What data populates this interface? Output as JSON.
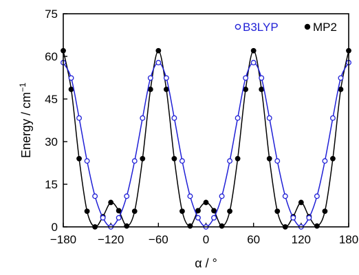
{
  "chart_data": {
    "type": "line",
    "xlabel": "α / °",
    "ylabel": "Energy / cm",
    "ylabel_superscript": "−1",
    "xlim": [
      -180,
      180
    ],
    "ylim": [
      0,
      75
    ],
    "xticks": [
      -180,
      -120,
      -60,
      0,
      60,
      120,
      180
    ],
    "yticks": [
      0,
      15,
      30,
      45,
      60,
      75
    ],
    "xtick_labels": [
      "−180",
      "−120",
      "−60",
      "0",
      "60",
      "120",
      "180"
    ],
    "ytick_labels": [
      "0",
      "15",
      "30",
      "45",
      "60",
      "75"
    ],
    "grid": false,
    "legend_placement": "top-right",
    "series": [
      {
        "name": "B3LYP",
        "color": "#1f1fd6",
        "marker": "open-circle",
        "x": [
          -180,
          -170,
          -160,
          -150,
          -140,
          -130,
          -120,
          -110,
          -100,
          -90,
          -80,
          -70,
          -60,
          -50,
          -40,
          -30,
          -20,
          -10,
          0,
          10,
          20,
          30,
          40,
          50,
          60,
          70,
          80,
          90,
          100,
          110,
          120,
          130,
          140,
          150,
          160,
          170,
          180
        ],
        "y": [
          57.8,
          52.4,
          38.3,
          23.2,
          10.8,
          3.2,
          0.0,
          3.2,
          10.8,
          23.2,
          38.3,
          52.4,
          57.8,
          52.4,
          38.3,
          23.2,
          10.8,
          3.2,
          0.0,
          3.2,
          10.8,
          23.2,
          38.3,
          52.4,
          57.8,
          52.4,
          38.3,
          23.2,
          10.8,
          3.2,
          0.0,
          3.2,
          10.8,
          23.2,
          38.3,
          52.4,
          57.8
        ]
      },
      {
        "name": "MP2",
        "color": "#000000",
        "marker": "filled-circle",
        "x": [
          -180,
          -170,
          -160,
          -150,
          -140,
          -130,
          -120,
          -110,
          -100,
          -90,
          -80,
          -70,
          -60,
          -50,
          -40,
          -30,
          -20,
          -10,
          0,
          10,
          20,
          30,
          40,
          50,
          60,
          70,
          80,
          90,
          100,
          110,
          120,
          130,
          140,
          150,
          160,
          170,
          180
        ],
        "y": [
          62.0,
          48.4,
          24.0,
          5.5,
          0.0,
          3.6,
          8.6,
          5.7,
          0.3,
          5.5,
          24.0,
          48.4,
          62.0,
          48.4,
          24.0,
          5.5,
          0.3,
          5.7,
          8.6,
          5.7,
          0.3,
          5.5,
          24.0,
          48.4,
          62.0,
          48.4,
          24.0,
          5.5,
          0.0,
          3.6,
          8.6,
          3.6,
          0.3,
          5.5,
          24.0,
          48.4,
          62.0
        ]
      }
    ]
  }
}
